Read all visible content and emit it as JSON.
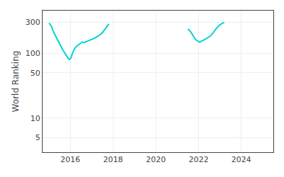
{
  "chart_data": {
    "type": "line",
    "ylabel": "World Ranking",
    "log": "y",
    "grid": true,
    "color": "#00d4d4",
    "xlim": [
      2014.7,
      2025.5
    ],
    "xticks": [
      2016,
      2018,
      2020,
      2022,
      2024
    ],
    "ylim": [
      3,
      450
    ],
    "yticks": [
      5,
      10,
      50,
      100,
      300
    ],
    "series": [
      {
        "x": [
          2015.0,
          2015.05,
          2015.1,
          2015.15,
          2015.2,
          2015.3,
          2015.4,
          2015.5,
          2015.55,
          2015.6,
          2015.65,
          2015.7,
          2015.75,
          2015.8,
          2015.85,
          2015.9,
          2015.95,
          2016.0,
          2016.05,
          2016.1,
          2016.2,
          2016.3,
          2016.35,
          2016.4,
          2016.45,
          2016.5,
          2016.55,
          2016.6,
          2016.65,
          2016.7,
          2016.75,
          2016.8,
          2016.9,
          2017.0,
          2017.1,
          2017.2,
          2017.3,
          2017.4,
          2017.5,
          2017.55,
          2017.6,
          2017.65,
          2017.7,
          2017.75,
          2017.8
        ],
        "values": [
          290,
          280,
          265,
          240,
          215,
          185,
          160,
          140,
          125,
          118,
          112,
          105,
          100,
          95,
          88,
          83,
          80,
          82,
          88,
          100,
          118,
          128,
          132,
          135,
          138,
          142,
          148,
          148,
          145,
          148,
          150,
          153,
          158,
          163,
          168,
          175,
          183,
          193,
          207,
          218,
          228,
          242,
          255,
          268,
          280
        ]
      },
      {
        "x": [
          2021.5,
          2021.55,
          2021.6,
          2021.65,
          2021.7,
          2021.75,
          2021.8,
          2021.85,
          2021.9,
          2021.95,
          2022.0,
          2022.05,
          2022.1,
          2022.15,
          2022.2,
          2022.3,
          2022.4,
          2022.5,
          2022.6,
          2022.65,
          2022.7,
          2022.75,
          2022.8,
          2022.85,
          2022.9,
          2022.95,
          2023.0,
          2023.05,
          2023.1,
          2023.15,
          2023.2
        ],
        "values": [
          235,
          228,
          218,
          208,
          195,
          183,
          172,
          163,
          158,
          153,
          150,
          148,
          150,
          153,
          157,
          163,
          170,
          178,
          190,
          198,
          208,
          220,
          232,
          245,
          256,
          265,
          272,
          280,
          287,
          292,
          297
        ]
      }
    ]
  }
}
